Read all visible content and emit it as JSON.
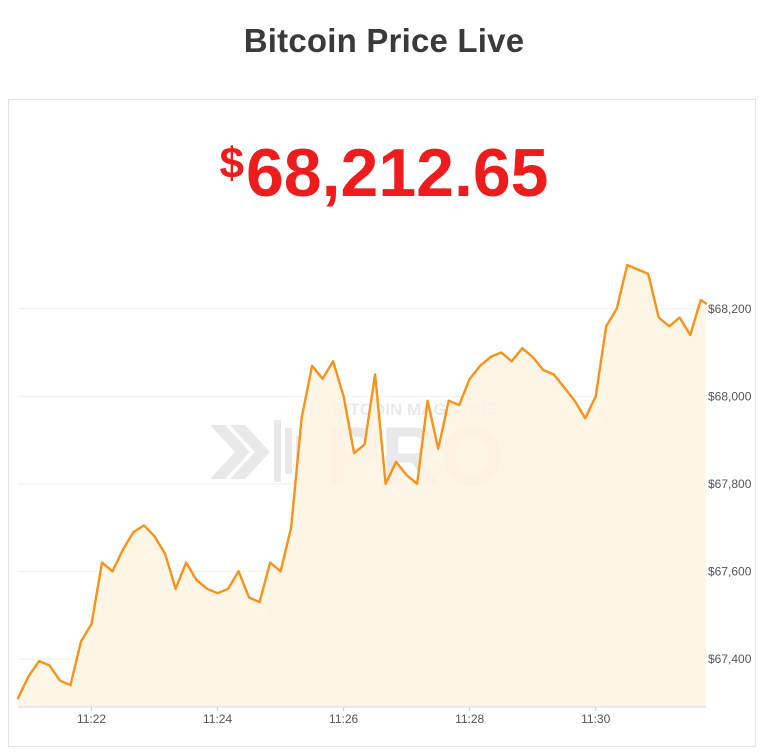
{
  "page": {
    "title": "Bitcoin Price Live",
    "price_symbol": "$",
    "price_value": "68,212.65"
  },
  "watermark": {
    "line1": "BITCOIN MAGAZINE",
    "line2": "PRO"
  },
  "colors": {
    "title": "#3a3a3a",
    "price": "#ee1c1c",
    "line": "#f7931a",
    "area": "#fdf3e2",
    "grid": "#eeeeee"
  },
  "chart_data": {
    "type": "area",
    "title": "",
    "xlabel": "",
    "ylabel": "",
    "x_ticks": [
      "11:22",
      "11:24",
      "11:26",
      "11:28",
      "11:30"
    ],
    "y_ticks": [
      "$67,400",
      "$67,600",
      "$67,800",
      "$68,000",
      "$68,200"
    ],
    "xlim": [
      "11:20:50",
      "11:31:45"
    ],
    "ylim": [
      67290,
      68380
    ],
    "grid": "horizontal",
    "series": [
      {
        "x": [
          "11:20:50",
          "11:21:00",
          "11:21:10",
          "11:21:20",
          "11:21:30",
          "11:21:40",
          "11:21:50",
          "11:22:00",
          "11:22:10",
          "11:22:20",
          "11:22:30",
          "11:22:40",
          "11:22:50",
          "11:23:00",
          "11:23:10",
          "11:23:20",
          "11:23:30",
          "11:23:40",
          "11:23:50",
          "11:24:00",
          "11:24:10",
          "11:24:20",
          "11:24:30",
          "11:24:40",
          "11:24:50",
          "11:25:00",
          "11:25:10",
          "11:25:20",
          "11:25:30",
          "11:25:40",
          "11:25:50",
          "11:26:00",
          "11:26:10",
          "11:26:20",
          "11:26:30",
          "11:26:40",
          "11:26:50",
          "11:27:00",
          "11:27:10",
          "11:27:20",
          "11:27:30",
          "11:27:40",
          "11:27:50",
          "11:28:00",
          "11:28:10",
          "11:28:20",
          "11:28:30",
          "11:28:40",
          "11:28:50",
          "11:29:00",
          "11:29:10",
          "11:29:20",
          "11:29:30",
          "11:29:40",
          "11:29:50",
          "11:30:00",
          "11:30:10",
          "11:30:20",
          "11:30:30",
          "11:30:40",
          "11:30:50",
          "11:31:00",
          "11:31:10",
          "11:31:20",
          "11:31:30",
          "11:31:40",
          "11:31:45"
        ],
        "values": [
          67310,
          67360,
          67395,
          67385,
          67350,
          67340,
          67440,
          67480,
          67620,
          67600,
          67650,
          67690,
          67705,
          67680,
          67640,
          67560,
          67620,
          67580,
          67560,
          67550,
          67560,
          67600,
          67540,
          67530,
          67620,
          67600,
          67700,
          67950,
          68070,
          68040,
          68080,
          68000,
          67870,
          67890,
          68050,
          67800,
          67850,
          67820,
          67800,
          67990,
          67880,
          67990,
          67980,
          68040,
          68070,
          68090,
          68100,
          68080,
          68110,
          68090,
          68060,
          68050,
          68020,
          67990,
          67950,
          68000,
          68160,
          68200,
          68300,
          68290,
          68280,
          68180,
          68160,
          68180,
          68140,
          68220,
          68212
        ]
      }
    ]
  }
}
